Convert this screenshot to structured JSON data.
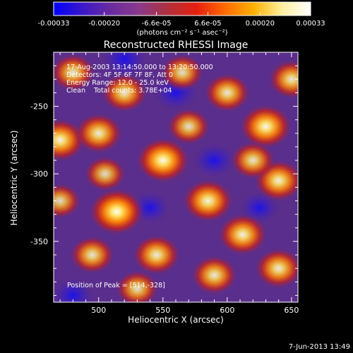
{
  "chart_data": {
    "type": "heatmap",
    "title": "Reconstructed RHESSI Image",
    "xlabel": "Heliocentric X (arcsec)",
    "ylabel": "Heliocentric Y (arcsec)",
    "xlim": [
      465,
      655
    ],
    "ylim": [
      -395,
      -210
    ],
    "xticks": [
      "500",
      "550",
      "600",
      "650"
    ],
    "yticks": [
      "-250",
      "-300",
      "-350"
    ],
    "annotations": [
      "17-Aug-2003 13:14:50.000 to 13:20:50.000",
      "Detectors: 4F 5F 6F 7F 8F, Att 0",
      "Energy Range: 12.0 - 25.0 keV",
      "Clean    Total counts: 3.78E+04"
    ],
    "peak_label": "Position of Peak = [514,-328]",
    "peak": [
      514,
      -328
    ],
    "colorbar": {
      "min": -0.00033,
      "max": 0.00033,
      "ticks": [
        "-0.00033",
        "-0.00020",
        "-6.6e-05",
        "6.6e-05",
        "0.00020",
        "0.00033"
      ],
      "unit_label": "(photons cm⁻² s⁻¹ asec⁻²)",
      "colormap": [
        "#0000ff",
        "#3a18c8",
        "#6a2ba0",
        "#8a3a8a",
        "#b0303c",
        "#e42010",
        "#ff6a00",
        "#ffb000",
        "#fff0a0",
        "#ffffff"
      ]
    },
    "sources": [
      {
        "x": 514,
        "y": -328,
        "intensity": 1.0
      },
      {
        "x": 550,
        "y": -290,
        "intensity": 0.95
      },
      {
        "x": 585,
        "y": -320,
        "intensity": 0.85
      },
      {
        "x": 630,
        "y": -265,
        "intensity": 0.9
      },
      {
        "x": 612,
        "y": -345,
        "intensity": 0.8
      },
      {
        "x": 470,
        "y": -275,
        "intensity": 0.85
      },
      {
        "x": 500,
        "y": -270,
        "intensity": 0.75
      },
      {
        "x": 545,
        "y": -360,
        "intensity": 0.75
      },
      {
        "x": 640,
        "y": -305,
        "intensity": 0.8
      },
      {
        "x": 600,
        "y": -240,
        "intensity": 0.7
      },
      {
        "x": 520,
        "y": -240,
        "intensity": 0.7
      },
      {
        "x": 480,
        "y": -225,
        "intensity": 0.65
      },
      {
        "x": 565,
        "y": -225,
        "intensity": 0.6
      },
      {
        "x": 640,
        "y": -370,
        "intensity": 0.75
      },
      {
        "x": 590,
        "y": -375,
        "intensity": 0.7
      },
      {
        "x": 530,
        "y": -385,
        "intensity": 0.6
      },
      {
        "x": 495,
        "y": -360,
        "intensity": 0.65
      },
      {
        "x": 650,
        "y": -230,
        "intensity": 0.7
      },
      {
        "x": 470,
        "y": -320,
        "intensity": 0.55
      },
      {
        "x": 570,
        "y": -265,
        "intensity": 0.6
      },
      {
        "x": 620,
        "y": -290,
        "intensity": 0.65
      },
      {
        "x": 505,
        "y": -300,
        "intensity": 0.55
      }
    ],
    "negatives": [
      {
        "x": 520,
        "y": -215,
        "intensity": 0.7
      },
      {
        "x": 560,
        "y": -240,
        "intensity": 0.6
      },
      {
        "x": 590,
        "y": -290,
        "intensity": 0.55
      },
      {
        "x": 480,
        "y": -390,
        "intensity": 0.5
      },
      {
        "x": 540,
        "y": -325,
        "intensity": 0.45
      },
      {
        "x": 625,
        "y": -325,
        "intensity": 0.4
      }
    ]
  },
  "footer": {
    "timestamp": "7-Jun-2013 13:49"
  }
}
